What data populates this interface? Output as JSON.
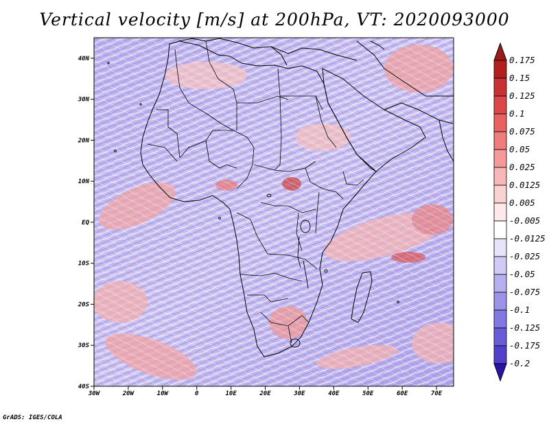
{
  "title": "Vertical velocity [m/s] at 200hPa, VT: 2020093000",
  "credit": "GrADS: IGES/COLA",
  "map": {
    "lon_range": [
      -30,
      75
    ],
    "lat_range": [
      -40,
      45
    ],
    "lon_ticks": [
      {
        "value": -30,
        "label": "30W"
      },
      {
        "value": -20,
        "label": "20W"
      },
      {
        "value": -10,
        "label": "10W"
      },
      {
        "value": 0,
        "label": "0"
      },
      {
        "value": 10,
        "label": "10E"
      },
      {
        "value": 20,
        "label": "20E"
      },
      {
        "value": 30,
        "label": "30E"
      },
      {
        "value": 40,
        "label": "40E"
      },
      {
        "value": 50,
        "label": "50E"
      },
      {
        "value": 60,
        "label": "60E"
      },
      {
        "value": 70,
        "label": "70E"
      }
    ],
    "lat_ticks": [
      {
        "value": 40,
        "label": "40N"
      },
      {
        "value": 30,
        "label": "30N"
      },
      {
        "value": 20,
        "label": "20N"
      },
      {
        "value": 10,
        "label": "10N"
      },
      {
        "value": 0,
        "label": "EQ"
      },
      {
        "value": -10,
        "label": "10S"
      },
      {
        "value": -20,
        "label": "20S"
      },
      {
        "value": -30,
        "label": "30S"
      },
      {
        "value": -40,
        "label": "40S"
      }
    ]
  },
  "colorbar": {
    "max_color": "#9b1b1b",
    "min_color": "#2a14a8",
    "bins": [
      {
        "label": "0.175",
        "color": "#b31f1f"
      },
      {
        "label": "0.15",
        "color": "#c83232"
      },
      {
        "label": "0.125",
        "color": "#dc4848"
      },
      {
        "label": "0.1",
        "color": "#e86262"
      },
      {
        "label": "0.075",
        "color": "#f07c7c"
      },
      {
        "label": "0.05",
        "color": "#f59a9a"
      },
      {
        "label": "0.025",
        "color": "#f8b8b8"
      },
      {
        "label": "0.0125",
        "color": "#fbd2d2"
      },
      {
        "label": "0.005",
        "color": "#fde9e9"
      },
      {
        "label": "-0.005",
        "color": "#ffffff"
      },
      {
        "label": "-0.0125",
        "color": "#e6e4fb"
      },
      {
        "label": "-0.025",
        "color": "#cfcbf6"
      },
      {
        "label": "-0.05",
        "color": "#b6b0f0"
      },
      {
        "label": "-0.075",
        "color": "#9c94ea"
      },
      {
        "label": "-0.1",
        "color": "#8378e2"
      },
      {
        "label": "-0.125",
        "color": "#6a5cd9"
      },
      {
        "label": "-0.175",
        "color": "#5040cc"
      },
      {
        "label": "-0.2",
        "color": "#3a26bc"
      }
    ]
  }
}
